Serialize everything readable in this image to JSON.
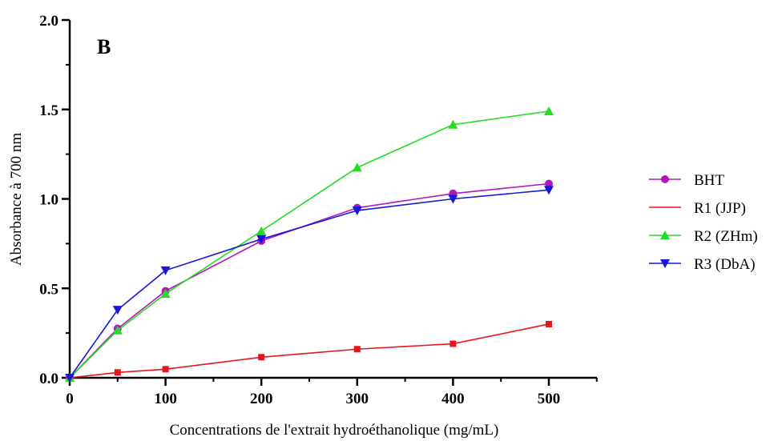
{
  "chart_data": {
    "type": "line",
    "panel_label": "B",
    "xlabel": "Concentrations de l'extrait hydroéthanolique (mg/mL)",
    "ylabel": "Absorbance à 700 nm",
    "xlim": [
      0,
      550
    ],
    "ylim": [
      0,
      2.0
    ],
    "x_ticks": [
      0,
      100,
      200,
      300,
      400,
      500
    ],
    "x_tick_labels": [
      "0",
      "100",
      "200",
      "300",
      "400",
      "500"
    ],
    "y_ticks": [
      0,
      0.5,
      1.0,
      1.5,
      2.0
    ],
    "y_tick_labels": [
      "0.0",
      "0.5",
      "1.0",
      "1.5",
      "2.0"
    ],
    "legend_position": "right",
    "grid": false,
    "x": [
      0,
      50,
      100,
      200,
      300,
      400,
      500
    ],
    "series": [
      {
        "name": "BHT",
        "color": "#b217c0",
        "marker": "circle",
        "values": [
          0.0,
          0.275,
          0.485,
          0.765,
          0.95,
          1.03,
          1.085
        ]
      },
      {
        "name": "R1 (JJP)",
        "color": "#e8161b",
        "marker": "square",
        "values": [
          0.0,
          0.03,
          0.048,
          0.115,
          0.16,
          0.19,
          0.3
        ]
      },
      {
        "name": "R2 (ZHm)",
        "color": "#22dd22",
        "marker": "triangle-up",
        "values": [
          0.0,
          0.265,
          0.47,
          0.82,
          1.175,
          1.415,
          1.49
        ]
      },
      {
        "name": "R3 (DbA)",
        "color": "#1818d8",
        "marker": "triangle-down",
        "values": [
          0.0,
          0.38,
          0.6,
          0.775,
          0.935,
          1.0,
          1.05
        ]
      }
    ]
  }
}
